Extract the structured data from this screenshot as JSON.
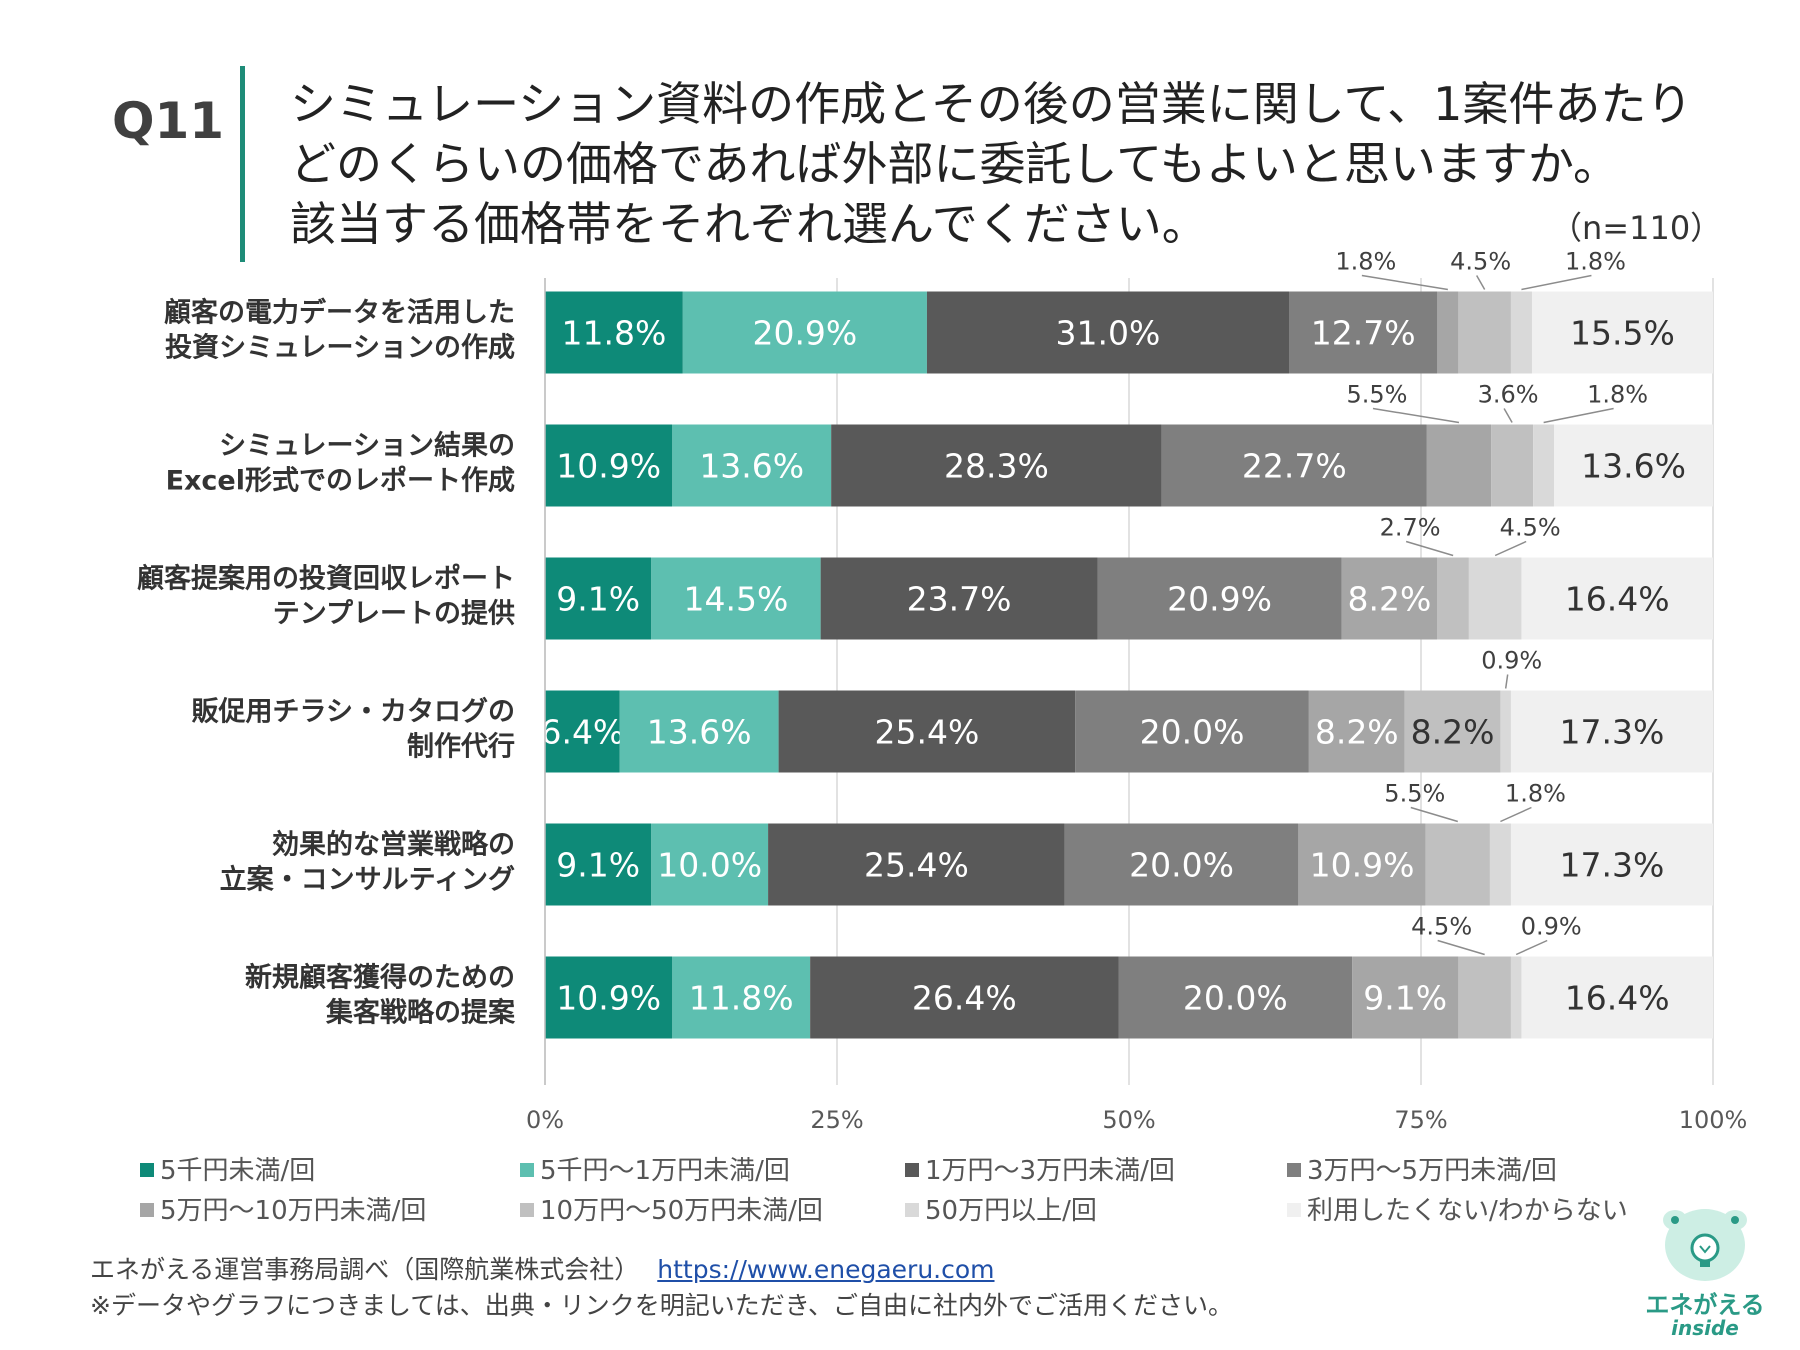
{
  "question": {
    "label": "Q11",
    "title_lines": [
      "シミュレーション資料の作成とその後の営業に関して、1案件あたり",
      "どのくらいの価格であれば外部に委託してもよいと思いますか。",
      "該当する価格帯をそれぞれ選んでください。"
    ],
    "sample": "（n=110）"
  },
  "chart_data": {
    "type": "bar",
    "orientation": "horizontal",
    "stacked": true,
    "percent_stacked": true,
    "xlim": [
      0,
      100
    ],
    "x_ticks": [
      "0%",
      "25%",
      "50%",
      "75%",
      "100%"
    ],
    "grid": true,
    "categories": [
      [
        "顧客の電力データを活用した",
        "投資シミュレーションの作成"
      ],
      [
        "シミュレーション結果の",
        "Excel形式でのレポート作成"
      ],
      [
        "顧客提案用の投資回収レポート",
        "テンプレートの提供"
      ],
      [
        "販促用チラシ・カタログの",
        "制作代行"
      ],
      [
        "効果的な営業戦略の",
        "立案・コンサルティング"
      ],
      [
        "新規顧客獲得のための",
        "集客戦略の提案"
      ]
    ],
    "series": [
      {
        "name": "5千円未満/回",
        "color": "#0e8a78",
        "values": [
          11.8,
          10.9,
          9.1,
          6.4,
          9.1,
          10.9
        ]
      },
      {
        "name": "5千円～1万円未満/回",
        "color": "#5dbfb0",
        "values": [
          20.9,
          13.6,
          14.5,
          13.6,
          10.0,
          11.8
        ]
      },
      {
        "name": "1万円～3万円未満/回",
        "color": "#595959",
        "values": [
          31.0,
          28.3,
          23.7,
          25.4,
          25.4,
          26.4
        ]
      },
      {
        "name": "3万円～5万円未満/回",
        "color": "#7f7f7f",
        "values": [
          12.7,
          22.7,
          20.9,
          20.0,
          20.0,
          20.0
        ]
      },
      {
        "name": "5万円～10万円未満/回",
        "color": "#a6a6a6",
        "values": [
          1.8,
          5.5,
          8.2,
          8.2,
          10.9,
          9.1
        ]
      },
      {
        "name": "10万円～50万円未満/回",
        "color": "#c0c0c0",
        "values": [
          4.5,
          3.6,
          2.7,
          8.2,
          5.5,
          4.5
        ]
      },
      {
        "name": "50万円以上/回",
        "color": "#d9d9d9",
        "values": [
          1.8,
          1.8,
          4.5,
          0.9,
          1.8,
          0.9
        ]
      },
      {
        "name": "利用したくない/わからない",
        "color": "#f0f0f0",
        "values": [
          15.5,
          13.6,
          16.4,
          17.3,
          17.3,
          16.4
        ]
      }
    ],
    "labels": [
      [
        "11.8%",
        "20.9%",
        "31.0%",
        "12.7%",
        "1.8%",
        "4.5%",
        "1.8%",
        "15.5%"
      ],
      [
        "10.9%",
        "13.6%",
        "28.3%",
        "22.7%",
        "5.5%",
        "3.6%",
        "1.8%",
        "13.6%"
      ],
      [
        "9.1%",
        "14.5%",
        "23.7%",
        "20.9%",
        "8.2%",
        "2.7%",
        "4.5%",
        "16.4%"
      ],
      [
        "6.4%",
        "13.6%",
        "25.4%",
        "20.0%",
        "8.2%",
        "8.2%",
        "0.9%",
        "17.3%"
      ],
      [
        "9.1%",
        "10.0%",
        "25.4%",
        "20.0%",
        "10.9%",
        "5.5%",
        "1.8%",
        "17.3%"
      ],
      [
        "10.9%",
        "11.8%",
        "26.4%",
        "20.0%",
        "9.1%",
        "4.5%",
        "0.9%",
        "16.4%"
      ]
    ],
    "callout_segments": [
      [
        4,
        5,
        6
      ],
      [
        4,
        5,
        6
      ],
      [
        5,
        6
      ],
      [
        6
      ],
      [
        5,
        6
      ],
      [
        5,
        6
      ]
    ]
  },
  "footer": {
    "source": "エネがえる運営事務局調べ（国際航業株式会社）",
    "url": "https://www.enegaeru.com",
    "note": "※データやグラフにつきましては、出典・リンクを明記いただき、ご自由に社内外でご活用ください。"
  },
  "logo": {
    "name": "エネがえる",
    "sub": "inside"
  }
}
